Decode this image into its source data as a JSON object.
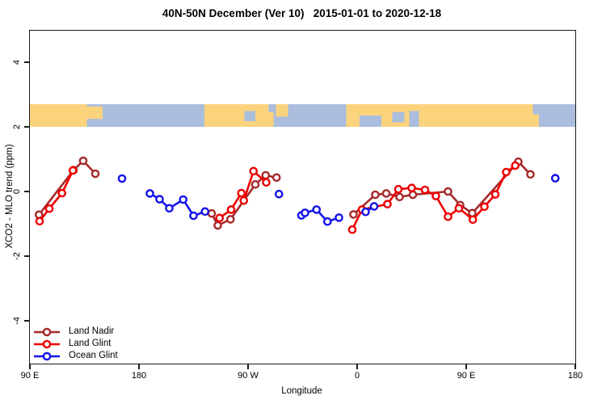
{
  "chart_data": {
    "type": "line",
    "title": "40N-50N December (Ver 10)   2015-01-01 to 2020-12-18",
    "xlabel": "Longitude",
    "ylabel": "XCO2 - MLO trend (ppm)",
    "grid": false,
    "x_axis_note": "longitude wraps eastward from 90E through 180, 90W, 0, 90E to 180",
    "x_range_deg": [
      90,
      540
    ],
    "y_range": [
      -5,
      5
    ],
    "x_ticks": [
      {
        "lon": 90,
        "label": "90 E"
      },
      {
        "lon": 180,
        "label": "180"
      },
      {
        "lon": 270,
        "label": "90 W"
      },
      {
        "lon": 360,
        "label": "0"
      },
      {
        "lon": 450,
        "label": "90 E"
      },
      {
        "lon": 540,
        "label": "180"
      }
    ],
    "y_ticks": [
      {
        "val": -4,
        "label": "-4"
      },
      {
        "val": -2,
        "label": "-2"
      },
      {
        "val": 0,
        "label": "0"
      },
      {
        "val": 2,
        "label": "2"
      },
      {
        "val": 4,
        "label": "4"
      }
    ],
    "legend": {
      "position": "bottom-left",
      "entries": [
        {
          "name": "Land Nadir",
          "color": "#A52A2A"
        },
        {
          "name": "Land Glint",
          "color": "#EE0000"
        },
        {
          "name": "Ocean Glint",
          "color": "#1414EB"
        }
      ]
    },
    "series": [
      {
        "name": "Land Nadir",
        "color": "#A52A2A",
        "chains": [
          [
            [
              97.5,
              -0.72
            ],
            [
              126,
              0.66
            ],
            [
              134,
              0.95
            ],
            [
              144,
              0.55
            ]
          ],
          [
            [
              240,
              -0.68
            ],
            [
              245,
              -1.05
            ],
            [
              255.5,
              -0.86
            ],
            [
              276,
              0.22
            ],
            [
              284.5,
              0.5
            ],
            [
              293.5,
              0.43
            ]
          ],
          [
            [
              357,
              -0.71
            ],
            [
              375,
              -0.1
            ],
            [
              384,
              -0.06
            ],
            [
              395,
              -0.17
            ],
            [
              406,
              -0.1
            ],
            [
              435,
              0.0
            ],
            [
              445,
              -0.42
            ],
            [
              455,
              -0.67
            ],
            [
              493,
              0.92
            ],
            [
              503,
              0.53
            ]
          ]
        ]
      },
      {
        "name": "Land Glint",
        "color": "#EE0000",
        "chains": [
          [
            [
              98,
              -0.92
            ],
            [
              106,
              -0.53
            ],
            [
              116.5,
              -0.05
            ],
            [
              125.5,
              0.65
            ]
          ],
          [
            [
              246.5,
              -0.82
            ],
            [
              256,
              -0.56
            ],
            [
              264.5,
              -0.05
            ],
            [
              266.5,
              -0.28
            ],
            [
              274.5,
              0.63
            ],
            [
              285,
              0.28
            ]
          ],
          [
            [
              356,
              -1.18
            ],
            [
              364,
              -0.56
            ],
            [
              385,
              -0.39
            ],
            [
              394,
              0.07
            ],
            [
              405,
              0.11
            ],
            [
              416,
              0.05
            ],
            [
              425,
              -0.14
            ],
            [
              435,
              -0.78
            ],
            [
              444,
              -0.52
            ],
            [
              455.5,
              -0.87
            ],
            [
              465,
              -0.47
            ],
            [
              474,
              -0.09
            ],
            [
              483,
              0.6
            ],
            [
              490.5,
              0.8
            ]
          ]
        ]
      },
      {
        "name": "Ocean Glint",
        "color": "#1414EB",
        "chains": [
          [
            [
              166,
              0.4
            ]
          ],
          [
            [
              189,
              -0.06
            ],
            [
              197,
              -0.24
            ],
            [
              205,
              -0.52
            ],
            [
              216.5,
              -0.25
            ],
            [
              225,
              -0.75
            ],
            [
              234.5,
              -0.62
            ]
          ],
          [
            [
              295.5,
              -0.08
            ]
          ],
          [
            [
              314,
              -0.74
            ],
            [
              317,
              -0.66
            ],
            [
              326.5,
              -0.56
            ],
            [
              335.5,
              -0.93
            ],
            [
              345,
              -0.81
            ]
          ],
          [
            [
              367,
              -0.63
            ],
            [
              374,
              -0.46
            ]
          ],
          [
            [
              523.5,
              0.41
            ]
          ]
        ]
      }
    ],
    "map_band": {
      "description": "40N-50N world map strip drawn across plot between y=2.0 and y=2.7",
      "y_top": 2.7,
      "y_bottom": 2.0,
      "ocean_color": "#AABDDC",
      "land_color": "#FBD37D",
      "land_segments": [
        {
          "from": 90,
          "to": 137,
          "top": 0,
          "height": 1
        },
        {
          "from": 137,
          "to": 150,
          "top": 0.1,
          "height": 0.55
        },
        {
          "from": 234,
          "to": 291,
          "top": 0,
          "height": 1
        },
        {
          "from": 293,
          "to": 303,
          "top": 0,
          "height": 0.55
        },
        {
          "from": 351,
          "to": 505,
          "top": 0,
          "height": 1
        },
        {
          "from": 505,
          "to": 510,
          "top": 0.45,
          "height": 0.55
        }
      ],
      "water_patches": [
        {
          "from": 267,
          "to": 276,
          "top": 0.3,
          "height": 0.45
        },
        {
          "from": 287,
          "to": 291,
          "top": 0,
          "height": 0.35
        },
        {
          "from": 362,
          "to": 380,
          "top": 0.5,
          "height": 0.5
        },
        {
          "from": 389,
          "to": 399,
          "top": 0.35,
          "height": 0.45
        },
        {
          "from": 403,
          "to": 411,
          "top": 0.3,
          "height": 0.7
        }
      ]
    }
  }
}
